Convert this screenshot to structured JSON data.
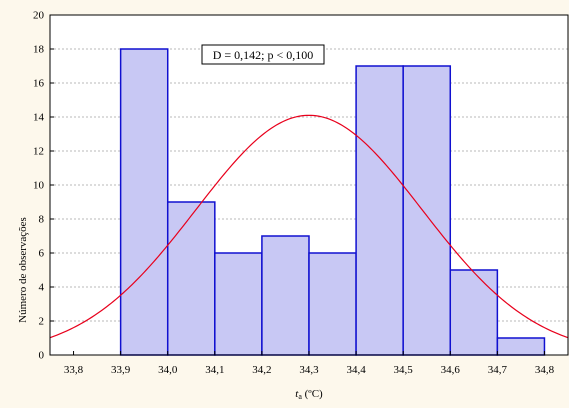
{
  "chart_data": {
    "type": "bar",
    "title": "",
    "xlabel": {
      "main": "t",
      "sub": "a",
      "unit": " (ºC)"
    },
    "ylabel": "Número de observações",
    "annotation": "D = 0,142; p < 0,100",
    "xlim": [
      33.75,
      34.85
    ],
    "ylim": [
      0,
      20
    ],
    "xticks": [
      {
        "value": 33.8,
        "label": "33,8"
      },
      {
        "value": 33.9,
        "label": "33,9"
      },
      {
        "value": 34.0,
        "label": "34,0"
      },
      {
        "value": 34.1,
        "label": "34,1"
      },
      {
        "value": 34.2,
        "label": "34,2"
      },
      {
        "value": 34.3,
        "label": "34,3"
      },
      {
        "value": 34.4,
        "label": "34,4"
      },
      {
        "value": 34.5,
        "label": "34,5"
      },
      {
        "value": 34.6,
        "label": "34,6"
      },
      {
        "value": 34.7,
        "label": "34,7"
      },
      {
        "value": 34.8,
        "label": "34,8"
      }
    ],
    "yticks": [
      {
        "value": 0,
        "label": "0"
      },
      {
        "value": 2,
        "label": "2"
      },
      {
        "value": 4,
        "label": "4"
      },
      {
        "value": 6,
        "label": "6"
      },
      {
        "value": 8,
        "label": "8"
      },
      {
        "value": 10,
        "label": "10"
      },
      {
        "value": 12,
        "label": "12"
      },
      {
        "value": 14,
        "label": "14"
      },
      {
        "value": 16,
        "label": "16"
      },
      {
        "value": 18,
        "label": "18"
      },
      {
        "value": 20,
        "label": "20"
      }
    ],
    "bins": [
      {
        "from": 33.9,
        "to": 34.0,
        "count": 18
      },
      {
        "from": 34.0,
        "to": 34.1,
        "count": 9
      },
      {
        "from": 34.1,
        "to": 34.2,
        "count": 6
      },
      {
        "from": 34.2,
        "to": 34.3,
        "count": 7
      },
      {
        "from": 34.3,
        "to": 34.4,
        "count": 6
      },
      {
        "from": 34.4,
        "to": 34.5,
        "count": 17
      },
      {
        "from": 34.5,
        "to": 34.6,
        "count": 17
      },
      {
        "from": 34.6,
        "to": 34.7,
        "count": 5
      },
      {
        "from": 34.7,
        "to": 34.8,
        "count": 1
      }
    ],
    "normal_curve": {
      "mean": 34.3,
      "sd": 0.24,
      "peak": 14.1
    },
    "grid": "horizontal dashed",
    "colors": {
      "bar_fill": "#c8c8f4",
      "bar_edge": "#1010d0",
      "curve": "#e8001c",
      "background": "#fdf8ec",
      "plot_area": "#ffffff"
    }
  }
}
